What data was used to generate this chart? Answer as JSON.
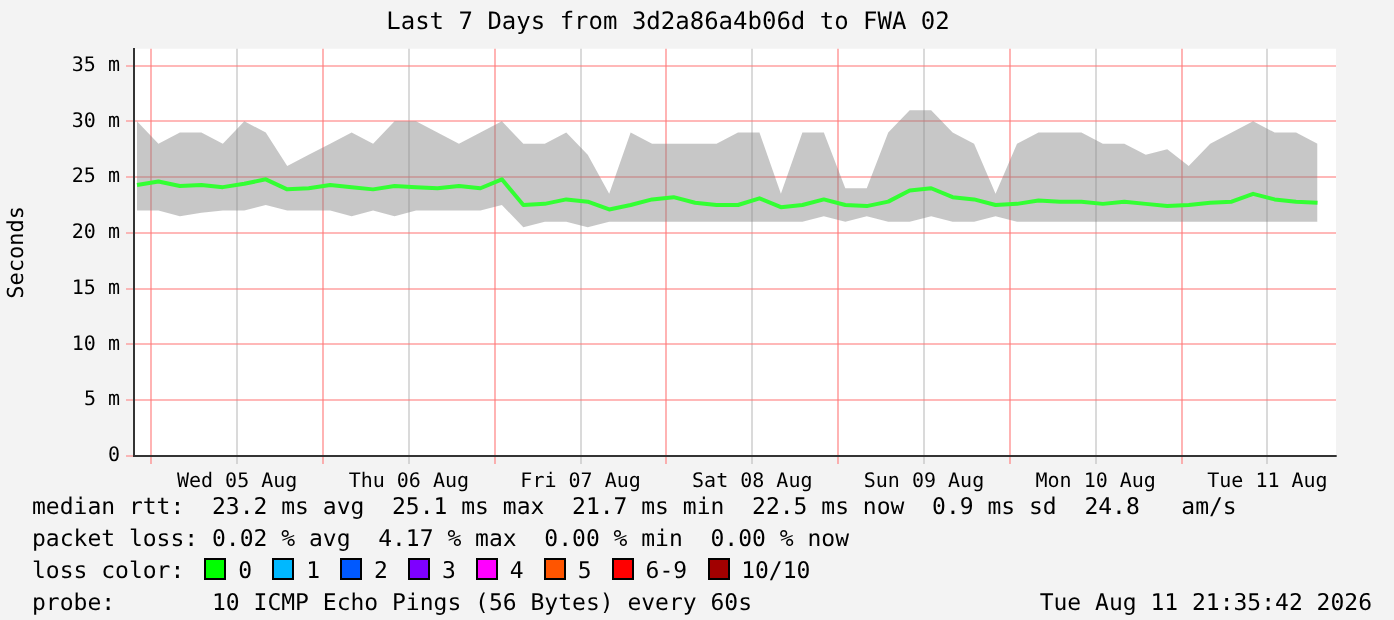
{
  "chart_data": {
    "type": "line",
    "title": "Last 7 Days from 3d2a86a4b06d to FWA 02",
    "ylabel": "Seconds",
    "x": [
      "2026-08-04T22:00",
      "2026-08-05T01:00",
      "2026-08-05T04:00",
      "2026-08-05T07:00",
      "2026-08-05T10:00",
      "2026-08-05T13:00",
      "2026-08-05T16:00",
      "2026-08-05T19:00",
      "2026-08-05T22:00",
      "2026-08-06T01:00",
      "2026-08-06T04:00",
      "2026-08-06T07:00",
      "2026-08-06T10:00",
      "2026-08-06T13:00",
      "2026-08-06T16:00",
      "2026-08-06T19:00",
      "2026-08-06T22:00",
      "2026-08-07T01:00",
      "2026-08-07T04:00",
      "2026-08-07T07:00",
      "2026-08-07T10:00",
      "2026-08-07T13:00",
      "2026-08-07T16:00",
      "2026-08-07T19:00",
      "2026-08-07T22:00",
      "2026-08-08T01:00",
      "2026-08-08T04:00",
      "2026-08-08T07:00",
      "2026-08-08T10:00",
      "2026-08-08T13:00",
      "2026-08-08T16:00",
      "2026-08-08T19:00",
      "2026-08-08T22:00",
      "2026-08-09T01:00",
      "2026-08-09T04:00",
      "2026-08-09T07:00",
      "2026-08-09T10:00",
      "2026-08-09T13:00",
      "2026-08-09T16:00",
      "2026-08-09T19:00",
      "2026-08-09T22:00",
      "2026-08-10T01:00",
      "2026-08-10T04:00",
      "2026-08-10T07:00",
      "2026-08-10T10:00",
      "2026-08-10T13:00",
      "2026-08-10T16:00",
      "2026-08-10T19:00",
      "2026-08-10T22:00",
      "2026-08-11T01:00",
      "2026-08-11T04:00",
      "2026-08-11T07:00",
      "2026-08-11T10:00",
      "2026-08-11T13:00",
      "2026-08-11T16:00",
      "2026-08-11T19:00"
    ],
    "series": [
      {
        "color": "#33ff33",
        "values": [
          24.3,
          24.6,
          24.2,
          24.3,
          24.1,
          24.4,
          24.8,
          23.9,
          24,
          24.3,
          24.1,
          23.9,
          24.2,
          24.1,
          24,
          24.2,
          24,
          24.8,
          22.5,
          22.6,
          23,
          22.8,
          22.1,
          22.5,
          23,
          23.2,
          22.7,
          22.5,
          22.5,
          23.1,
          22.3,
          22.5,
          23,
          22.5,
          22.4,
          22.8,
          23.8,
          24,
          23.2,
          23,
          22.5,
          22.6,
          22.9,
          22.8,
          22.8,
          22.6,
          22.8,
          22.6,
          22.4,
          22.5,
          22.7,
          22.8,
          23.5,
          23,
          22.8,
          22.7
        ],
        "lower": [
          22,
          22,
          21.5,
          21.8,
          22,
          22,
          22.5,
          22,
          22,
          22,
          21.5,
          22,
          21.5,
          22,
          22,
          22,
          22,
          22.5,
          20.5,
          21,
          21,
          20.5,
          21,
          21,
          21,
          21,
          21,
          21,
          21,
          21,
          21,
          21,
          21.5,
          21,
          21.5,
          21,
          21,
          21.5,
          21,
          21,
          21.5,
          21,
          21,
          21,
          21,
          21,
          21,
          21,
          21,
          21,
          21,
          21,
          21,
          21,
          21,
          21
        ],
        "upper": [
          30,
          28,
          29,
          29,
          28,
          30,
          29,
          26,
          27,
          28,
          29,
          28,
          30,
          30,
          29,
          28,
          29,
          30,
          28,
          28,
          29,
          27,
          23.5,
          29,
          28,
          28,
          28,
          28,
          29,
          29,
          23.5,
          29,
          29,
          24,
          24,
          29,
          31,
          31,
          29,
          28,
          23.5,
          28,
          29,
          29,
          29,
          28,
          28,
          27,
          27.5,
          26,
          28,
          29,
          30,
          29,
          29,
          28
        ]
      }
    ],
    "xlim": [
      "2026-08-04T21:35",
      "2026-08-11T21:35"
    ],
    "xticks": [
      {
        "value": "2026-08-05T00:00",
        "label": null
      },
      {
        "value": "2026-08-05T12:00",
        "label": "Wed 05 Aug"
      },
      {
        "value": "2026-08-06T00:00",
        "label": null
      },
      {
        "value": "2026-08-06T12:00",
        "label": "Thu 06 Aug"
      },
      {
        "value": "2026-08-07T00:00",
        "label": null
      },
      {
        "value": "2026-08-07T12:00",
        "label": "Fri 07 Aug"
      },
      {
        "value": "2026-08-08T00:00",
        "label": null
      },
      {
        "value": "2026-08-08T12:00",
        "label": "Sat 08 Aug"
      },
      {
        "value": "2026-08-09T00:00",
        "label": null
      },
      {
        "value": "2026-08-09T12:00",
        "label": "Sun 09 Aug"
      },
      {
        "value": "2026-08-10T00:00",
        "label": null
      },
      {
        "value": "2026-08-10T12:00",
        "label": "Mon 10 Aug"
      },
      {
        "value": "2026-08-11T00:00",
        "label": null
      },
      {
        "value": "2026-08-11T12:00",
        "label": "Tue 11 Aug"
      }
    ],
    "ylim": [
      0,
      36.5
    ],
    "yticks": [
      0,
      {
        "value": 5,
        "label": "5 m"
      },
      {
        "value": 10,
        "label": "10 m"
      },
      {
        "value": 15,
        "label": "15 m"
      },
      {
        "value": 20,
        "label": "20 m"
      },
      {
        "value": 25,
        "label": "25 m"
      },
      {
        "value": 30,
        "label": "30 m"
      },
      {
        "value": 35,
        "label": "35 m"
      }
    ],
    "grid": true,
    "legend": false,
    "marker": "none",
    "line_style": "solid",
    "annotations": [
      "median rtt:  23.2 ms avg  25.1 ms max  21.7 ms min  22.5 ms now  0.9 ms sd  24.8   am/s",
      "packet loss: 0.02 % avg  4.17 % max  0.00 % min  0.00 % now",
      "loss color:",
      "0",
      "1",
      "2",
      "3",
      "4",
      "5",
      "6-9",
      "10/10",
      "probe:       10 ICMP Echo Pings (56 Bytes) every 60s",
      "Tue Aug 11 21:35:42 2026"
    ]
  }
}
